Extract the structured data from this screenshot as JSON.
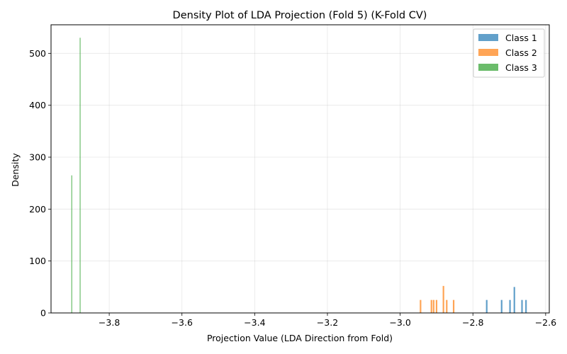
{
  "chart_data": {
    "type": "histogram",
    "title": "Density Plot of LDA Projection (Fold 5) (K-Fold CV)",
    "xlabel": "Projection Value (LDA Direction from Fold)",
    "ylabel": "Density",
    "xlim": [
      -3.96,
      -2.59
    ],
    "ylim": [
      0,
      555
    ],
    "xticks": [
      -3.8,
      -3.6,
      -3.4,
      -3.2,
      -3.0,
      -2.8,
      -2.6
    ],
    "xtick_labels": [
      "−3.8",
      "−3.6",
      "−3.4",
      "−3.2",
      "−3.0",
      "−2.8",
      "−2.6"
    ],
    "yticks": [
      0,
      100,
      200,
      300,
      400,
      500
    ],
    "ytick_labels": [
      "0",
      "100",
      "200",
      "300",
      "400",
      "500"
    ],
    "grid": true,
    "legend_position": "top-right",
    "series": [
      {
        "name": "Class 1",
        "color": "#1f77b4",
        "bars": [
          {
            "x": -2.762,
            "y": 25
          },
          {
            "x": -2.721,
            "y": 25
          },
          {
            "x": -2.698,
            "y": 25
          },
          {
            "x": -2.686,
            "y": 50
          },
          {
            "x": -2.665,
            "y": 25
          },
          {
            "x": -2.654,
            "y": 25
          }
        ]
      },
      {
        "name": "Class 2",
        "color": "#ff7f0e",
        "bars": [
          {
            "x": -2.944,
            "y": 25
          },
          {
            "x": -2.914,
            "y": 25
          },
          {
            "x": -2.908,
            "y": 25
          },
          {
            "x": -2.9,
            "y": 25
          },
          {
            "x": -2.881,
            "y": 52
          },
          {
            "x": -2.872,
            "y": 25
          },
          {
            "x": -2.853,
            "y": 25
          }
        ]
      },
      {
        "name": "Class 3",
        "color": "#2ca02c",
        "bars": [
          {
            "x": -3.903,
            "y": 265
          },
          {
            "x": -3.88,
            "y": 530
          }
        ]
      }
    ]
  }
}
